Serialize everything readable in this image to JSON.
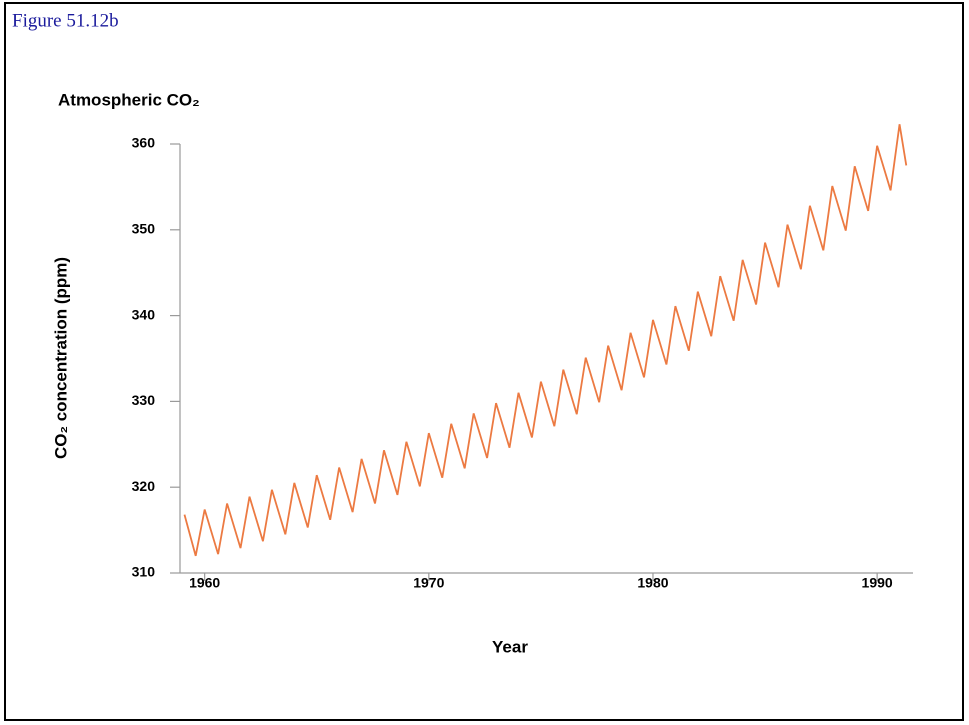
{
  "figure_label": "Figure 51.12b",
  "chart_data": {
    "type": "line",
    "title": "Atmospheric CO₂",
    "x_label": "Year",
    "y_label": "CO₂ concentration (ppm)",
    "xlim": [
      1958.9,
      1991.6
    ],
    "ylim": [
      310,
      360
    ],
    "xticks": [
      1960,
      1970,
      1980,
      1990
    ],
    "yticks": [
      310,
      320,
      330,
      340,
      350,
      360
    ],
    "grid": false,
    "series": [
      {
        "color": "#ec7a42",
        "x": [
          1959.1,
          1959.6,
          1960,
          1960.6,
          1961,
          1961.6,
          1962,
          1962.6,
          1963,
          1963.6,
          1964,
          1964.6,
          1965,
          1965.6,
          1966,
          1966.6,
          1967,
          1967.6,
          1968,
          1968.6,
          1969,
          1969.6,
          1970,
          1970.6,
          1971,
          1971.6,
          1972,
          1972.6,
          1973,
          1973.6,
          1974,
          1974.6,
          1975,
          1975.6,
          1976,
          1976.6,
          1977,
          1977.6,
          1978,
          1978.6,
          1979,
          1979.6,
          1980,
          1980.6,
          1981,
          1981.6,
          1982,
          1982.6,
          1983,
          1983.6,
          1984,
          1984.6,
          1985,
          1985.6,
          1986,
          1986.6,
          1987,
          1987.6,
          1988,
          1988.6,
          1989,
          1989.6,
          1990,
          1990.6,
          1991,
          1991.3
        ],
        "values": [
          316.8,
          312.0,
          317.4,
          312.2,
          318.1,
          312.9,
          318.9,
          313.7,
          319.7,
          314.5,
          320.5,
          315.3,
          321.4,
          316.2,
          322.3,
          317.1,
          323.3,
          318.1,
          324.3,
          319.1,
          325.3,
          320.1,
          326.3,
          321.1,
          327.4,
          322.2,
          328.6,
          323.4,
          329.8,
          324.6,
          331.0,
          325.8,
          332.3,
          327.1,
          333.7,
          328.5,
          335.1,
          329.9,
          336.5,
          331.3,
          338.0,
          332.8,
          339.5,
          334.3,
          341.1,
          335.9,
          342.8,
          337.6,
          344.6,
          339.4,
          346.5,
          341.3,
          348.5,
          343.3,
          350.6,
          345.4,
          352.8,
          347.6,
          355.1,
          349.9,
          357.4,
          352.2,
          359.8,
          354.6,
          362.3,
          357.5
        ]
      }
    ]
  }
}
